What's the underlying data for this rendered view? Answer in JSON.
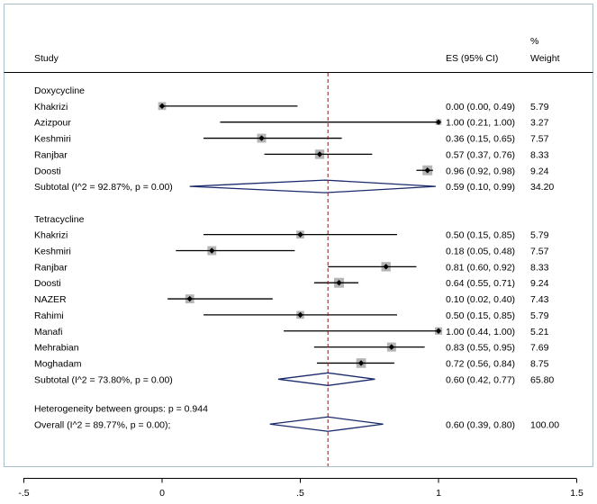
{
  "chart_data": {
    "type": "forest",
    "headers": {
      "study": "Study",
      "es": "ES (95% CI)",
      "weight_line1": "%",
      "weight_line2": "Weight"
    },
    "xaxis": {
      "ticks": [
        -0.5,
        0,
        0.5,
        1,
        1.5
      ],
      "tick_labels": [
        "-.5",
        "0",
        ".5",
        "1",
        "1.5"
      ],
      "range": [
        -0.5,
        1.5
      ]
    },
    "overall_es_line": 0.6,
    "groups": [
      {
        "name": "Doxycycline",
        "studies": [
          {
            "study": "Khakrizi",
            "es": 0.0,
            "lo": 0.0,
            "hi": 0.49,
            "es_text": "0.00 (0.00, 0.49)",
            "weight": "5.79",
            "weight_value": 5.79
          },
          {
            "study": "Azizpour",
            "es": 1.0,
            "lo": 0.21,
            "hi": 1.0,
            "es_text": "1.00 (0.21, 1.00)",
            "weight": "3.27",
            "weight_value": 3.27
          },
          {
            "study": "Keshmiri",
            "es": 0.36,
            "lo": 0.15,
            "hi": 0.65,
            "es_text": "0.36 (0.15, 0.65)",
            "weight": "7.57",
            "weight_value": 7.57
          },
          {
            "study": "Ranjbar",
            "es": 0.57,
            "lo": 0.37,
            "hi": 0.76,
            "es_text": "0.57 (0.37, 0.76)",
            "weight": "8.33",
            "weight_value": 8.33
          },
          {
            "study": "Doosti",
            "es": 0.96,
            "lo": 0.92,
            "hi": 0.98,
            "es_text": "0.96 (0.92, 0.98)",
            "weight": "9.24",
            "weight_value": 9.24
          }
        ],
        "subtotal": {
          "label": "Subtotal  (I^2 = 92.87%, p = 0.00)",
          "es": 0.59,
          "lo": 0.1,
          "hi": 0.99,
          "es_text": "0.59 (0.10, 0.99)",
          "weight": "34.20"
        }
      },
      {
        "name": "Tetracycline",
        "studies": [
          {
            "study": "Khakrizi",
            "es": 0.5,
            "lo": 0.15,
            "hi": 0.85,
            "es_text": "0.50 (0.15, 0.85)",
            "weight": "5.79",
            "weight_value": 5.79
          },
          {
            "study": "Keshmiri",
            "es": 0.18,
            "lo": 0.05,
            "hi": 0.48,
            "es_text": "0.18 (0.05, 0.48)",
            "weight": "7.57",
            "weight_value": 7.57
          },
          {
            "study": "Ranjbar",
            "es": 0.81,
            "lo": 0.6,
            "hi": 0.92,
            "es_text": "0.81 (0.60, 0.92)",
            "weight": "8.33",
            "weight_value": 8.33
          },
          {
            "study": "Doosti",
            "es": 0.64,
            "lo": 0.55,
            "hi": 0.71,
            "es_text": "0.64 (0.55, 0.71)",
            "weight": "9.24",
            "weight_value": 9.24
          },
          {
            "study": "NAZER",
            "es": 0.1,
            "lo": 0.02,
            "hi": 0.4,
            "es_text": "0.10 (0.02, 0.40)",
            "weight": "7.43",
            "weight_value": 7.43
          },
          {
            "study": "Rahimi",
            "es": 0.5,
            "lo": 0.15,
            "hi": 0.85,
            "es_text": "0.50 (0.15, 0.85)",
            "weight": "5.79",
            "weight_value": 5.79
          },
          {
            "study": "Manafi",
            "es": 1.0,
            "lo": 0.44,
            "hi": 1.0,
            "es_text": "1.00 (0.44, 1.00)",
            "weight": "5.21",
            "weight_value": 5.21
          },
          {
            "study": "Mehrabian",
            "es": 0.83,
            "lo": 0.55,
            "hi": 0.95,
            "es_text": "0.83 (0.55, 0.95)",
            "weight": "7.69",
            "weight_value": 7.69
          },
          {
            "study": "Moghadam",
            "es": 0.72,
            "lo": 0.56,
            "hi": 0.84,
            "es_text": "0.72 (0.56, 0.84)",
            "weight": "8.75",
            "weight_value": 8.75
          }
        ],
        "subtotal": {
          "label": "Subtotal  (I^2 = 73.80%, p = 0.00)",
          "es": 0.6,
          "lo": 0.42,
          "hi": 0.77,
          "es_text": "0.60 (0.42, 0.77)",
          "weight": "65.80"
        }
      }
    ],
    "heterogeneity_text": "Heterogeneity between groups: p = 0.944",
    "overall": {
      "label": "Overall  (I^2 = 89.77%, p = 0.00);",
      "es": 0.6,
      "lo": 0.39,
      "hi": 0.8,
      "es_text": "0.60 (0.39, 0.80)",
      "weight": "100.00"
    },
    "colors": {
      "frame": "#aac0cc",
      "diamond": "#1a2a6c",
      "ref_line": "#8b1a1a",
      "weight_box": "#b4b4b4",
      "point": "#000000"
    }
  }
}
